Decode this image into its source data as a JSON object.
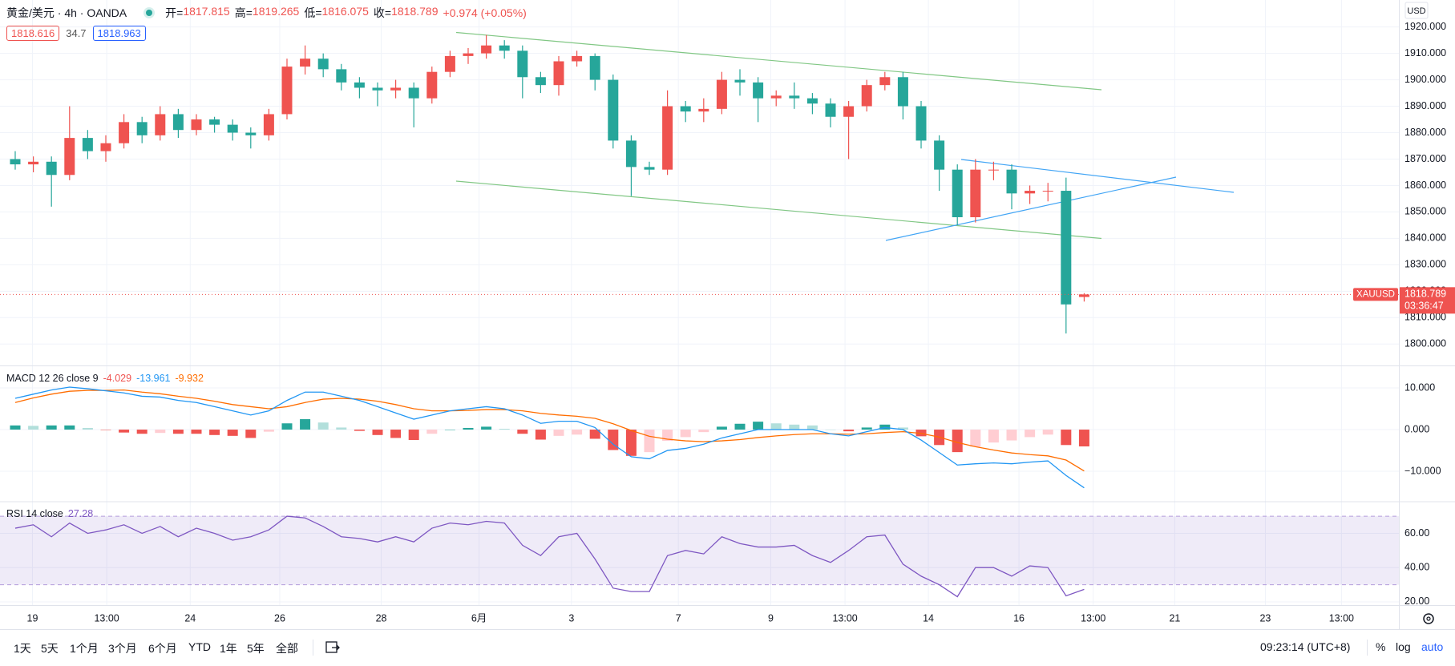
{
  "chart_data": [
    {
      "type": "candlestick",
      "symbol_title": "黄金/美元 · 4h · OANDA",
      "ohlc_labels": [
        "开=",
        "高=",
        "低=",
        "收="
      ],
      "change": "+0.974 (+0.05%)",
      "bid": "1818.616",
      "spread": "34.7",
      "ask": "1818.963",
      "currency": "USD",
      "symbol_code": "XAUUSD",
      "countdown": "03:36:47",
      "colors": {
        "up": "#ef5350",
        "down": "#26a69a"
      },
      "grid": true,
      "xlim": [
        -0.84,
        76.37
      ],
      "xticks": [
        {
          "value": 0.95,
          "label": "19"
        },
        {
          "value": 5.05,
          "label": "13:00"
        },
        {
          "value": 9.66,
          "label": "24"
        },
        {
          "value": 14.6,
          "label": "26"
        },
        {
          "value": 20.2,
          "label": "28"
        },
        {
          "value": 25.6,
          "label": "6月"
        },
        {
          "value": 30.7,
          "label": "3"
        },
        {
          "value": 36.6,
          "label": "7"
        },
        {
          "value": 41.7,
          "label": "9"
        },
        {
          "value": 45.8,
          "label": "13:00"
        },
        {
          "value": 50.4,
          "label": "14"
        },
        {
          "value": 55.4,
          "label": "16"
        },
        {
          "value": 59.5,
          "label": "13:00"
        },
        {
          "value": 64.0,
          "label": "21"
        },
        {
          "value": 69.0,
          "label": "23"
        },
        {
          "value": 73.2,
          "label": "13:00"
        }
      ],
      "ylim": [
        1792.2,
        1930.2
      ],
      "yticks": [
        {
          "value": 1800,
          "label": "1800.000"
        },
        {
          "value": 1810,
          "label": "1810.000"
        },
        {
          "value": 1820,
          "label": "1820.000"
        },
        {
          "value": 1830,
          "label": "1830.000"
        },
        {
          "value": 1840,
          "label": "1840.000"
        },
        {
          "value": 1850,
          "label": "1850.000"
        },
        {
          "value": 1860,
          "label": "1860.000"
        },
        {
          "value": 1870,
          "label": "1870.000"
        },
        {
          "value": 1880,
          "label": "1880.000"
        },
        {
          "value": 1890,
          "label": "1890.000"
        },
        {
          "value": 1900,
          "label": "1900.000"
        },
        {
          "value": 1910,
          "label": "1910.000"
        },
        {
          "value": 1920,
          "label": "1920.000"
        }
      ],
      "open": [
        1870,
        1868,
        1869,
        1864,
        1878,
        1873,
        1876,
        1884,
        1879,
        1887,
        1881,
        1885,
        1883,
        1880,
        1879,
        1887,
        1905,
        1908,
        1904,
        1899,
        1897,
        1896,
        1897,
        1893,
        1903,
        1909,
        1910,
        1913,
        1911,
        1901,
        1898,
        1907,
        1909,
        1900,
        1877,
        1867,
        1866,
        1890,
        1888,
        1889,
        1900,
        1899,
        1893,
        1894,
        1893,
        1891,
        1886,
        1890,
        1898,
        1901,
        1890,
        1877,
        1866,
        1848,
        1866,
        1866,
        1857,
        1858,
        1858,
        1817.815
      ],
      "high": [
        1873,
        1871,
        1871,
        1890,
        1881,
        1879,
        1887,
        1886,
        1890,
        1889,
        1887,
        1886,
        1885,
        1882,
        1889,
        1908,
        1913,
        1910,
        1906,
        1901,
        1899,
        1900,
        1899,
        1905,
        1911,
        1912,
        1917,
        1915,
        1913,
        1903,
        1909,
        1911,
        1910,
        1902,
        1879,
        1869,
        1896,
        1892,
        1893,
        1903,
        1904,
        1901,
        1896,
        1899,
        1895,
        1893,
        1892,
        1900,
        1903,
        1903,
        1892,
        1879,
        1868,
        1870,
        1869,
        1868,
        1860,
        1861,
        1863,
        1819.265
      ],
      "low": [
        1866,
        1865,
        1852,
        1862,
        1870,
        1869,
        1874,
        1876,
        1877,
        1878,
        1879,
        1880,
        1877,
        1874,
        1877,
        1885,
        1902,
        1901,
        1896,
        1893,
        1890,
        1893,
        1882,
        1891,
        1901,
        1906,
        1908,
        1908,
        1893,
        1895,
        1894,
        1905,
        1896,
        1874,
        1856,
        1864,
        1864,
        1884,
        1884,
        1887,
        1894,
        1884,
        1890,
        1889,
        1887,
        1882,
        1870,
        1888,
        1896,
        1885,
        1874,
        1858,
        1845,
        1846,
        1862,
        1851,
        1853,
        1854,
        1804,
        1816.075
      ],
      "close": [
        1868,
        1869,
        1864,
        1878,
        1873,
        1876,
        1884,
        1879,
        1887,
        1881,
        1885,
        1883,
        1880,
        1879,
        1887,
        1905,
        1908,
        1904,
        1899,
        1897,
        1896,
        1897,
        1893,
        1903,
        1909,
        1910,
        1913,
        1911,
        1901,
        1898,
        1907,
        1909,
        1900,
        1877,
        1867,
        1866,
        1890,
        1888,
        1889,
        1900,
        1899,
        1893,
        1894,
        1893,
        1891,
        1886,
        1890,
        1898,
        1901,
        1890,
        1877,
        1866,
        1848,
        1866,
        1866,
        1857,
        1858,
        1858,
        1815,
        1818.789
      ]
    },
    {
      "type": "macd",
      "title": "MACD 12 26 close 9",
      "grid": true,
      "ylim": [
        -17.1,
        15
      ],
      "yticks": [
        {
          "value": 10,
          "label": "10.000"
        },
        {
          "value": 0,
          "label": "0.000"
        },
        {
          "value": -10,
          "label": "−10.000"
        }
      ],
      "histogram": {
        "colors": [
          "#26a69a",
          "#b2dfdb",
          "#ef5350",
          "#ffcdd2"
        ],
        "values": [
          1.0,
          0.9,
          1.0,
          1.0,
          0.4,
          -0.1,
          -0.7,
          -1.0,
          -0.8,
          -1.0,
          -1.0,
          -1.3,
          -1.5,
          -2.0,
          -0.5,
          1.5,
          2.5,
          1.7,
          0.5,
          -0.3,
          -1.3,
          -2.0,
          -2.5,
          -1.0,
          0.0,
          0.4,
          0.7,
          0.2,
          -1.0,
          -2.4,
          -1.5,
          -1.2,
          -2.2,
          -4.9,
          -6.3,
          -5.4,
          -2.7,
          -1.8,
          -0.6,
          0.7,
          1.4,
          1.9,
          1.5,
          1.2,
          1.0,
          0.0,
          -0.4,
          0.5,
          1.2,
          0.5,
          -1.6,
          -3.7,
          -5.4,
          -4.1,
          -3.1,
          -2.6,
          -1.8,
          -1.2,
          -3.7,
          -4.029
        ]
      },
      "macd": {
        "color": "#2196f3",
        "values": [
          7.5,
          8.5,
          9.5,
          10.2,
          9.8,
          9.3,
          8.8,
          8,
          7.8,
          7,
          6.5,
          5.5,
          4.5,
          3.5,
          4.5,
          7,
          9,
          9,
          8,
          7,
          5.5,
          4,
          2.5,
          3.5,
          4.5,
          5,
          5.5,
          5,
          3.5,
          1.5,
          2,
          2,
          0.5,
          -3.5,
          -6.5,
          -7,
          -5,
          -4.5,
          -3.5,
          -2,
          -1,
          0,
          0,
          0,
          0,
          -1,
          -1.5,
          -0.5,
          0.5,
          0,
          -2.5,
          -5.5,
          -8.5,
          -8.2,
          -8,
          -8.2,
          -7.8,
          -7.5,
          -11,
          -13.961
        ]
      },
      "signal": {
        "color": "#ff6d00",
        "values": [
          6.5,
          7.6,
          8.5,
          9.2,
          9.4,
          9.4,
          9.5,
          9,
          8.6,
          8,
          7.5,
          6.8,
          6,
          5.5,
          5,
          5.5,
          6.5,
          7.3,
          7.5,
          7.3,
          6.8,
          6,
          5,
          4.5,
          4.5,
          4.6,
          4.8,
          4.8,
          4.5,
          3.9,
          3.5,
          3.2,
          2.7,
          1.4,
          -0.2,
          -1.6,
          -2.3,
          -2.7,
          -2.9,
          -2.7,
          -2.4,
          -1.9,
          -1.5,
          -1.2,
          -1,
          -1,
          -1.1,
          -1,
          -0.7,
          -0.5,
          -0.9,
          -1.8,
          -3.1,
          -4.1,
          -4.9,
          -5.6,
          -6,
          -6.3,
          -7.3,
          -9.932
        ]
      }
    },
    {
      "type": "line",
      "title": "RSI 14 close",
      "color": "#7e57c2",
      "grid": true,
      "ylim": [
        18.1,
        78
      ],
      "yticks": [
        {
          "value": 60,
          "label": "60.00"
        },
        {
          "value": 40,
          "label": "40.00"
        },
        {
          "value": 20,
          "label": "20.00"
        }
      ],
      "bands": [
        30,
        70
      ],
      "values": [
        63,
        65,
        58,
        66,
        60,
        62,
        65,
        60,
        64,
        58,
        63,
        60,
        56,
        58,
        62,
        70,
        69,
        64,
        58,
        57,
        55,
        58,
        55,
        63,
        66,
        65,
        67,
        66,
        53,
        47,
        58,
        60,
        45,
        28,
        26,
        26,
        47,
        50,
        48,
        58,
        54,
        52,
        52,
        53,
        47,
        43,
        50,
        58,
        59,
        42,
        35,
        30,
        23,
        40,
        40,
        35,
        41,
        40,
        23.5,
        27.28
      ]
    }
  ],
  "toolbar": {
    "ranges": [
      "1天",
      "5天",
      "1个月",
      "3个月",
      "6个月",
      "YTD",
      "1年",
      "5年",
      "全部"
    ],
    "clock": "09:23:14 (UTC+8)",
    "options": [
      "%",
      "log",
      "auto"
    ]
  }
}
